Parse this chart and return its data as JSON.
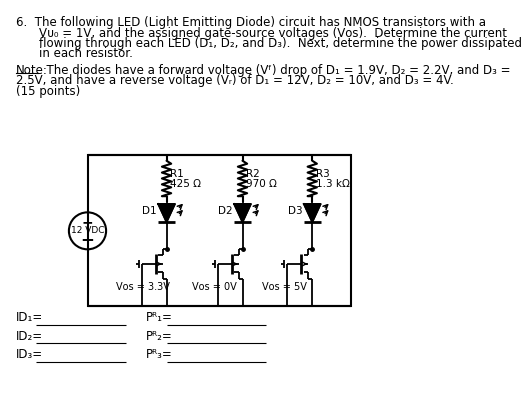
{
  "background_color": "#ffffff",
  "text_lines": [
    "6.  The following LED (Light Emitting Diode) circuit has NMOS transistors with a",
    "    Vᴜ₀ = 1V, and the assigned gate-source voltages (Vᴏs).  Determine the current",
    "    flowing through each LED (D₁, D₂, and D₃).  Next, determine the power dissipated",
    "    in each resistor."
  ],
  "note_line1": "Note:  The diodes have a forward voltage (Vᶠ) drop of D₁ = 1.9V, D₂ = 2.2V, and D₃ =",
  "note_line2": "2.5V, and have a reverse voltage (Vᵣ) of D₁ = 12V, D₂ = 10V, and D₃ = 4V.",
  "note_line3": "(15 points)",
  "res_labels": [
    "R1",
    "R2",
    "R3"
  ],
  "res_values": [
    "425 Ω",
    "970 Ω",
    "1.3 kΩ"
  ],
  "diode_labels": [
    "D1",
    "D2",
    "D3"
  ],
  "vgs_labels": [
    "Vᴏs = 3.3V",
    "Vᴏs = 0V",
    "Vᴏs = 5V"
  ],
  "vsrc_label": "12 VDC",
  "ans_labels": [
    "ID₁=",
    "ID₂=",
    "ID₃="
  ],
  "pwr_labels": [
    "Pᴿ₁=",
    "Pᴿ₂=",
    "Pᴿ₃="
  ]
}
